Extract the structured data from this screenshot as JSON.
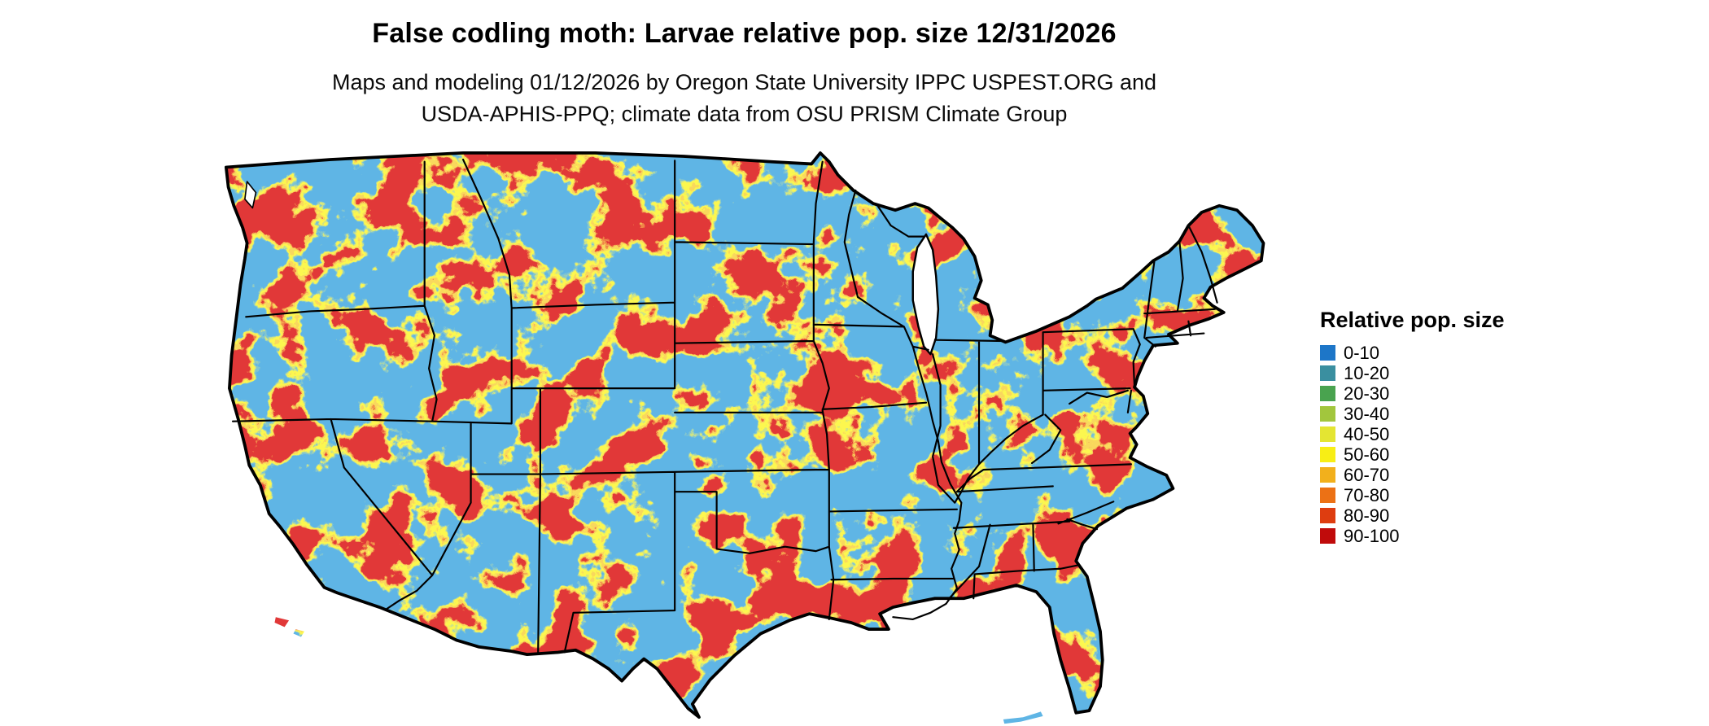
{
  "title": "False codling moth: Larvae relative pop. size 12/31/2026",
  "subtitle_line1": "Maps and modeling 01/12/2026 by Oregon State University IPPC USPEST.ORG and",
  "subtitle_line2": "USDA-APHIS-PPQ; climate data from OSU PRISM Climate Group",
  "legend": {
    "title": "Relative pop. size",
    "items": [
      {
        "label": "0-10",
        "color": "#1d76c8"
      },
      {
        "label": "10-20",
        "color": "#3a8fa0"
      },
      {
        "label": "20-30",
        "color": "#49a34f"
      },
      {
        "label": "30-40",
        "color": "#a2c63d"
      },
      {
        "label": "40-50",
        "color": "#e4e532"
      },
      {
        "label": "50-60",
        "color": "#f8ee15"
      },
      {
        "label": "60-70",
        "color": "#f2b01c"
      },
      {
        "label": "70-80",
        "color": "#ec7115"
      },
      {
        "label": "80-90",
        "color": "#de3d10"
      },
      {
        "label": "90-100",
        "color": "#c00b0b"
      }
    ]
  },
  "map": {
    "outline_color": "#000000",
    "water_color": "#ffffff",
    "base_color": "#1d76c8"
  }
}
